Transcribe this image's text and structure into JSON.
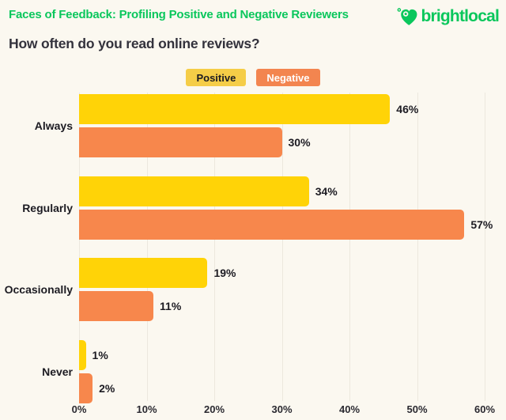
{
  "header": {
    "title": "Faces of Feedback: Profiling Positive and Negative Reviewers",
    "brand": "brightlocal"
  },
  "question": "How often do you read online reviews?",
  "legend": {
    "positive": {
      "label": "Positive",
      "bg": "#F5CD47",
      "text": "#1C1B22"
    },
    "negative": {
      "label": "Negative",
      "bg": "#F3854F",
      "text": "#FFFFFF"
    }
  },
  "colors": {
    "background": "#FBF8F0",
    "brand_green": "#0AC75C",
    "gridline": "#ECE8DE",
    "text_dark": "#33323C",
    "label_black": "#1C1B22"
  },
  "chart_data": {
    "type": "bar",
    "orientation": "horizontal",
    "title": "How often do you read online reviews?",
    "categories": [
      "Always",
      "Regularly",
      "Occasionally",
      "Never"
    ],
    "series": [
      {
        "name": "Positive",
        "color": "#FFD307",
        "values": [
          46,
          34,
          19,
          1
        ],
        "labels": [
          "46%",
          "34%",
          "19%",
          "1%"
        ]
      },
      {
        "name": "Negative",
        "color": "#F7874C",
        "values": [
          30,
          57,
          11,
          2
        ],
        "labels": [
          "30%",
          "57%",
          "11%",
          "2%"
        ]
      }
    ],
    "xlim": [
      0,
      60
    ],
    "x_ticks": [
      "0%",
      "10%",
      "20%",
      "30%",
      "40%",
      "50%",
      "60%"
    ],
    "grid": true,
    "legend_position": "top"
  }
}
